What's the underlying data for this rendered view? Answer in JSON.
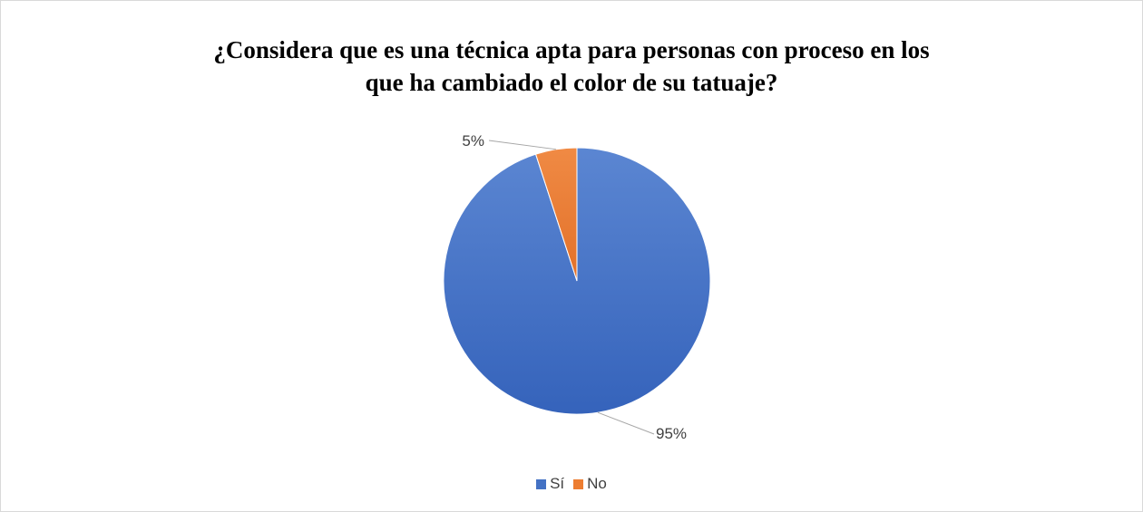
{
  "chart_data": {
    "type": "pie",
    "title_lines": [
      "¿Considera que es una técnica apta para personas con proceso en los",
      "que ha cambiado el color de su tatuaje?"
    ],
    "categories": [
      "Sí",
      "No"
    ],
    "values": [
      95,
      5
    ],
    "data_labels": [
      "95%",
      "5%"
    ],
    "colors": [
      "#4472c4",
      "#ed7d31"
    ],
    "legend_position": "bottom"
  }
}
